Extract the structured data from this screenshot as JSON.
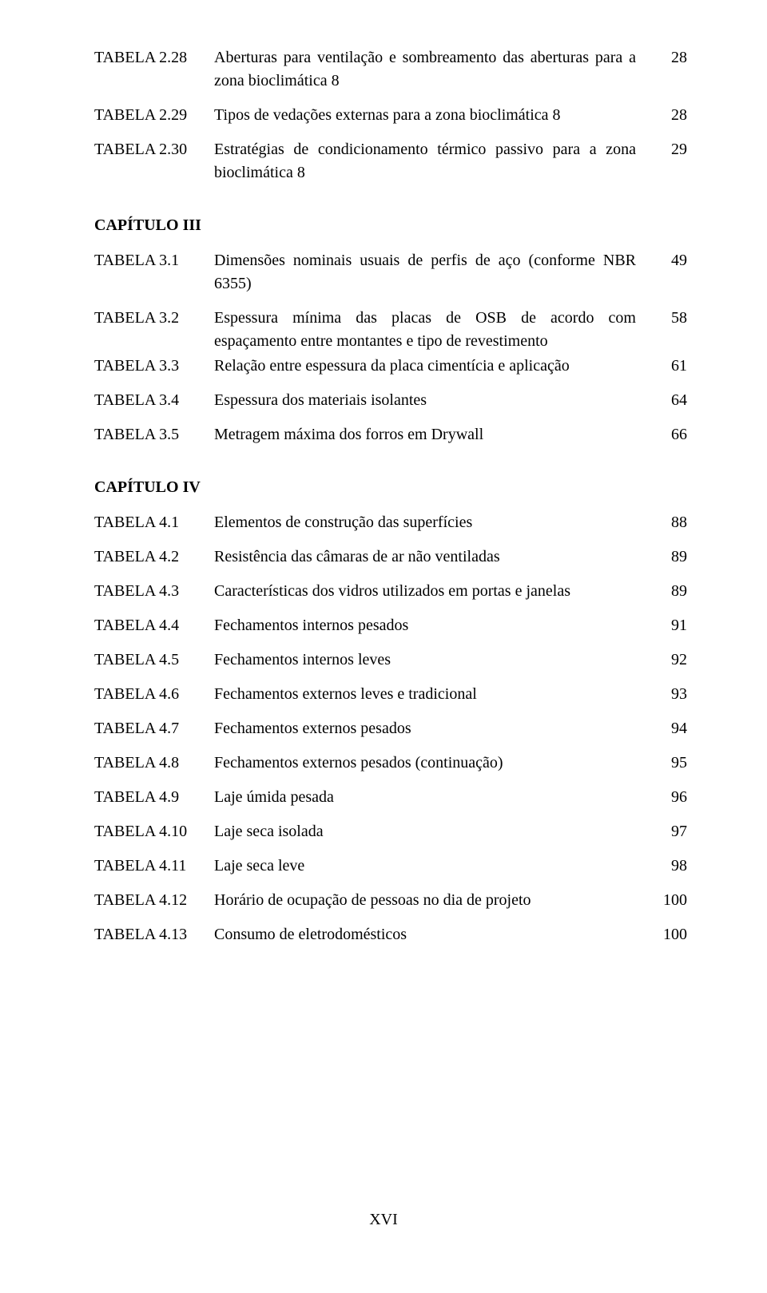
{
  "top_rows": [
    {
      "label": "TABELA 2.28",
      "desc": "Aberturas para ventilação e sombreamento das aberturas para a zona bioclimática 8",
      "page": "28"
    },
    {
      "label": "TABELA 2.29",
      "desc": "Tipos de vedações externas para a zona bioclimática 8",
      "page": "28"
    },
    {
      "label": "TABELA 2.30",
      "desc": "Estratégias de condicionamento térmico passivo para a zona bioclimática 8",
      "page": "29"
    }
  ],
  "chapters": [
    {
      "heading": "CAPÍTULO III",
      "rows": [
        {
          "label": "TABELA 3.1",
          "desc": "Dimensões nominais usuais de perfis de aço (conforme NBR 6355)",
          "page": "49"
        },
        {
          "label": "TABELA 3.2",
          "desc": "Espessura mínima das placas de OSB de acordo com espaçamento entre montantes e tipo de revestimento",
          "page": "58"
        },
        {
          "label": "TABELA 3.3",
          "desc": "Relação entre espessura da placa cimentícia e aplicação",
          "page": "61"
        },
        {
          "label": "TABELA 3.4",
          "desc": "Espessura dos materiais isolantes",
          "page": "64"
        },
        {
          "label": "TABELA 3.5",
          "desc": "Metragem máxima dos forros em Drywall",
          "page": "66"
        }
      ]
    },
    {
      "heading": "CAPÍTULO IV",
      "rows": [
        {
          "label": "TABELA 4.1",
          "desc": "Elementos de construção das superfícies",
          "page": "88"
        },
        {
          "label": "TABELA 4.2",
          "desc": "Resistência das câmaras de ar não ventiladas",
          "page": "89"
        },
        {
          "label": "TABELA 4.3",
          "desc": "Características dos vidros utilizados em portas e janelas",
          "page": "89"
        },
        {
          "label": "TABELA 4.4",
          "desc": "Fechamentos internos pesados",
          "page": "91"
        },
        {
          "label": "TABELA 4.5",
          "desc": "Fechamentos internos leves",
          "page": "92"
        },
        {
          "label": "TABELA 4.6",
          "desc": "Fechamentos externos leves e tradicional",
          "page": "93"
        },
        {
          "label": "TABELA 4.7",
          "desc": "Fechamentos externos pesados",
          "page": "94"
        },
        {
          "label": "TABELA 4.8",
          "desc": "Fechamentos externos pesados (continuação)",
          "page": "95"
        },
        {
          "label": "TABELA 4.9",
          "desc": "Laje úmida pesada",
          "page": "96"
        },
        {
          "label": "TABELA 4.10",
          "desc": "Laje seca isolada",
          "page": "97"
        },
        {
          "label": "TABELA 4.11",
          "desc": "Laje seca leve",
          "page": "98"
        },
        {
          "label": "TABELA 4.12",
          "desc": "Horário de ocupação de pessoas no dia de projeto",
          "page": "100"
        },
        {
          "label": "TABELA 4.13",
          "desc": "Consumo de eletrodomésticos",
          "page": "100"
        }
      ]
    }
  ],
  "footer_page_number": "XVI"
}
